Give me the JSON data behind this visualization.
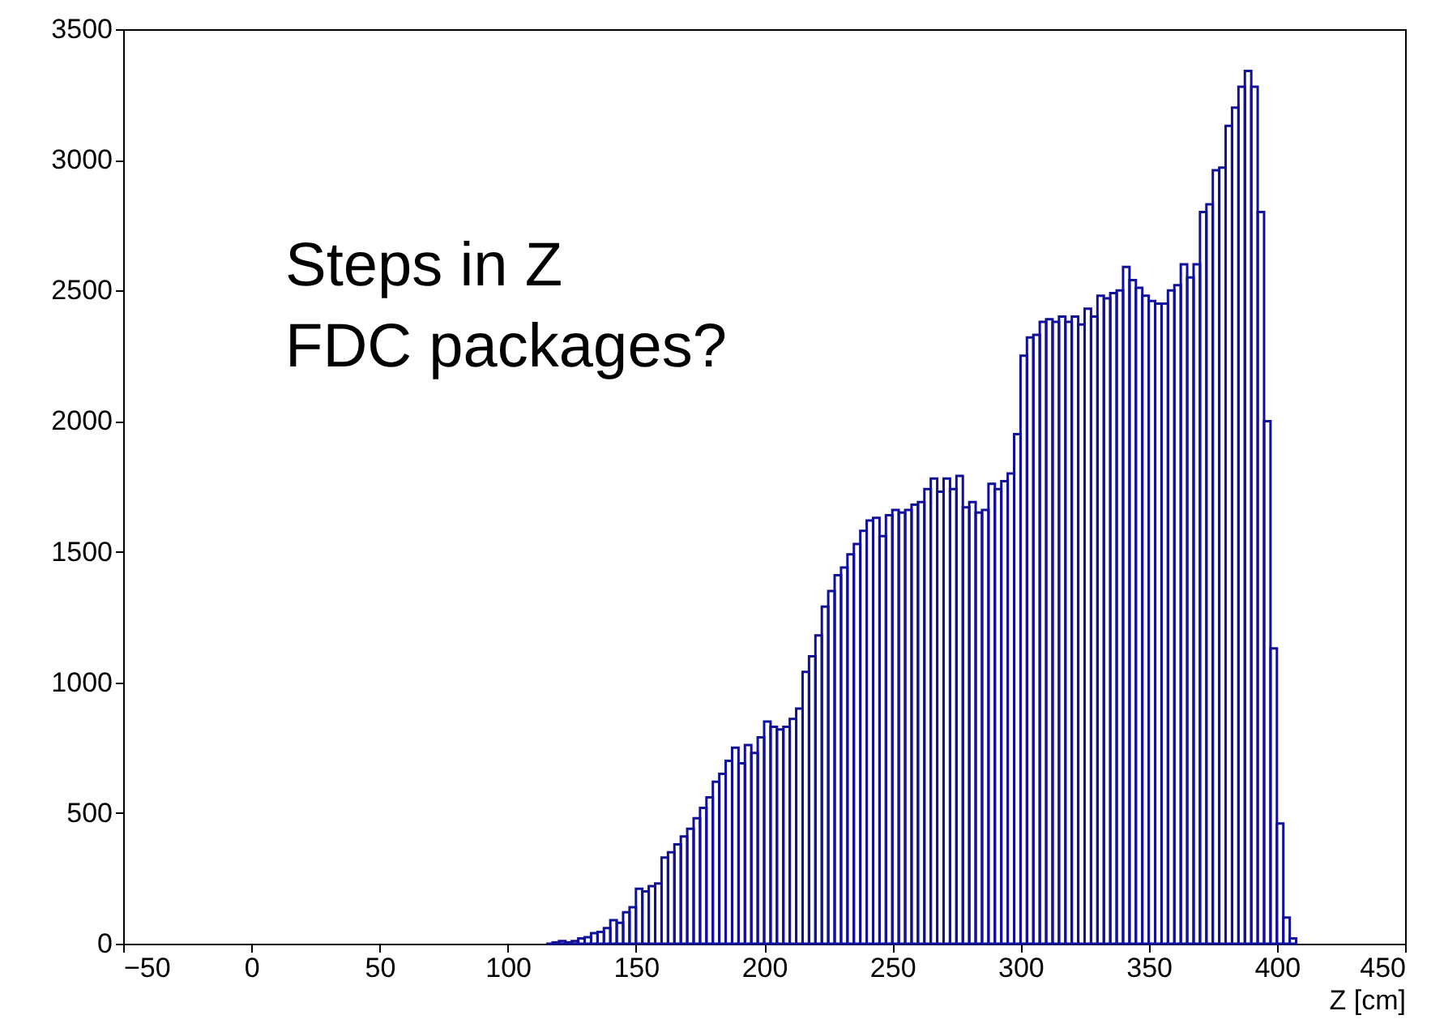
{
  "chart_data": {
    "type": "histogram",
    "xlabel": "Z [cm]",
    "color": "#10109a",
    "annotations": [
      "Steps in Z",
      "FDC packages?"
    ],
    "bins": [
      115,
      117.5,
      120,
      122.5,
      125,
      127.5,
      130,
      132.5,
      135,
      137.5,
      140,
      142.5,
      145,
      147.5,
      150,
      152.5,
      155,
      157.5,
      160,
      162.5,
      165,
      167.5,
      170,
      172.5,
      175,
      177.5,
      180,
      182.5,
      185,
      187.5,
      190,
      192.5,
      195,
      197.5,
      200,
      202.5,
      205,
      207.5,
      210,
      212.5,
      215,
      217.5,
      220,
      222.5,
      225,
      227.5,
      230,
      232.5,
      235,
      237.5,
      240,
      242.5,
      245,
      247.5,
      250,
      252.5,
      255,
      257.5,
      260,
      262.5,
      265,
      267.5,
      270,
      272.5,
      275,
      277.5,
      280,
      282.5,
      285,
      287.5,
      290,
      292.5,
      295,
      297.5,
      300,
      302.5,
      305,
      307.5,
      310,
      312.5,
      315,
      317.5,
      320,
      322.5,
      325,
      327.5,
      330,
      332.5,
      335,
      337.5,
      340,
      342.5,
      345,
      347.5,
      350,
      352.5,
      355,
      357.5,
      360,
      362.5,
      365,
      367.5,
      370,
      372.5,
      375,
      377.5,
      380,
      382.5,
      385,
      387.5,
      390,
      392.5,
      395,
      397.5,
      400,
      402.5,
      405,
      407.5
    ],
    "values": [
      0,
      5,
      10,
      5,
      10,
      20,
      25,
      40,
      45,
      60,
      90,
      80,
      120,
      140,
      210,
      200,
      220,
      230,
      330,
      350,
      380,
      410,
      440,
      480,
      520,
      560,
      620,
      650,
      700,
      750,
      690,
      760,
      730,
      790,
      850,
      830,
      820,
      830,
      860,
      900,
      1040,
      1100,
      1180,
      1290,
      1350,
      1410,
      1440,
      1490,
      1530,
      1580,
      1620,
      1630,
      1560,
      1640,
      1660,
      1650,
      1660,
      1680,
      1690,
      1740,
      1780,
      1730,
      1780,
      1740,
      1790,
      1670,
      1690,
      1650,
      1660,
      1760,
      1740,
      1770,
      1800,
      1950,
      2250,
      2320,
      2330,
      2380,
      2390,
      2380,
      2400,
      2380,
      2400,
      2370,
      2430,
      2400,
      2480,
      2470,
      2490,
      2500,
      2590,
      2540,
      2510,
      2480,
      2460,
      2450,
      2450,
      2500,
      2520,
      2600,
      2550,
      2600,
      2800,
      2830,
      2960,
      2970,
      3130,
      3200,
      3280,
      3340,
      3280,
      2800,
      2000,
      1130,
      460,
      100,
      20
    ],
    "xlim": [
      -50,
      450
    ],
    "xticks": [
      -50,
      0,
      50,
      100,
      150,
      200,
      250,
      300,
      350,
      400,
      450
    ],
    "ylim": [
      0,
      3500
    ],
    "yticks": [
      0,
      500,
      1000,
      1500,
      2000,
      2500,
      3000,
      3500
    ]
  }
}
